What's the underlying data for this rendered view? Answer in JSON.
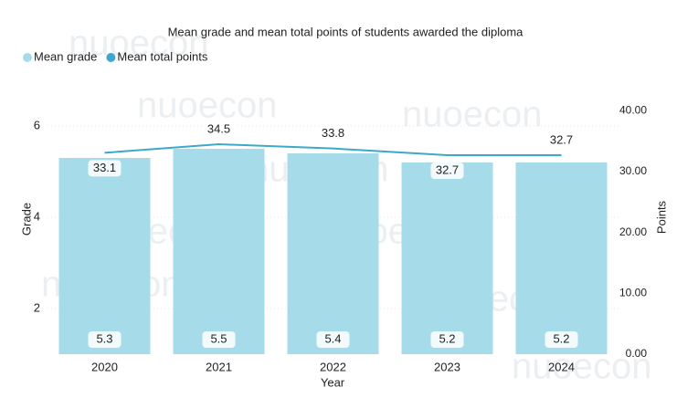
{
  "chart_data": {
    "type": "bar-line",
    "title": "Mean grade and mean total points of students awarded the diploma",
    "watermark": "nuoecon",
    "x_label": "Year",
    "y_label": "Grade",
    "y2_label": "Points",
    "categories": [
      "2020",
      "2021",
      "2022",
      "2023",
      "2024"
    ],
    "series": [
      {
        "name": "Mean grade",
        "type": "bar",
        "color": "#a6dbe9",
        "values": [
          5.3,
          5.5,
          5.4,
          5.2,
          5.2
        ]
      },
      {
        "name": "Mean total points",
        "type": "line",
        "axis": "y2",
        "color": "#3aa9cc",
        "values": [
          33.1,
          34.5,
          33.8,
          32.7,
          32.7
        ]
      }
    ],
    "ylim": [
      1,
      7
    ],
    "yticks": [
      2,
      4,
      6
    ],
    "y2lim": [
      0,
      45
    ],
    "y2ticks": [
      {
        "value": 0,
        "label": "0.00"
      },
      {
        "value": 10,
        "label": "10.00"
      },
      {
        "value": 20,
        "label": "20.00"
      },
      {
        "value": 30,
        "label": "30.00"
      },
      {
        "value": 40,
        "label": "40.00"
      }
    ],
    "grid": true,
    "legend": "top-left"
  }
}
